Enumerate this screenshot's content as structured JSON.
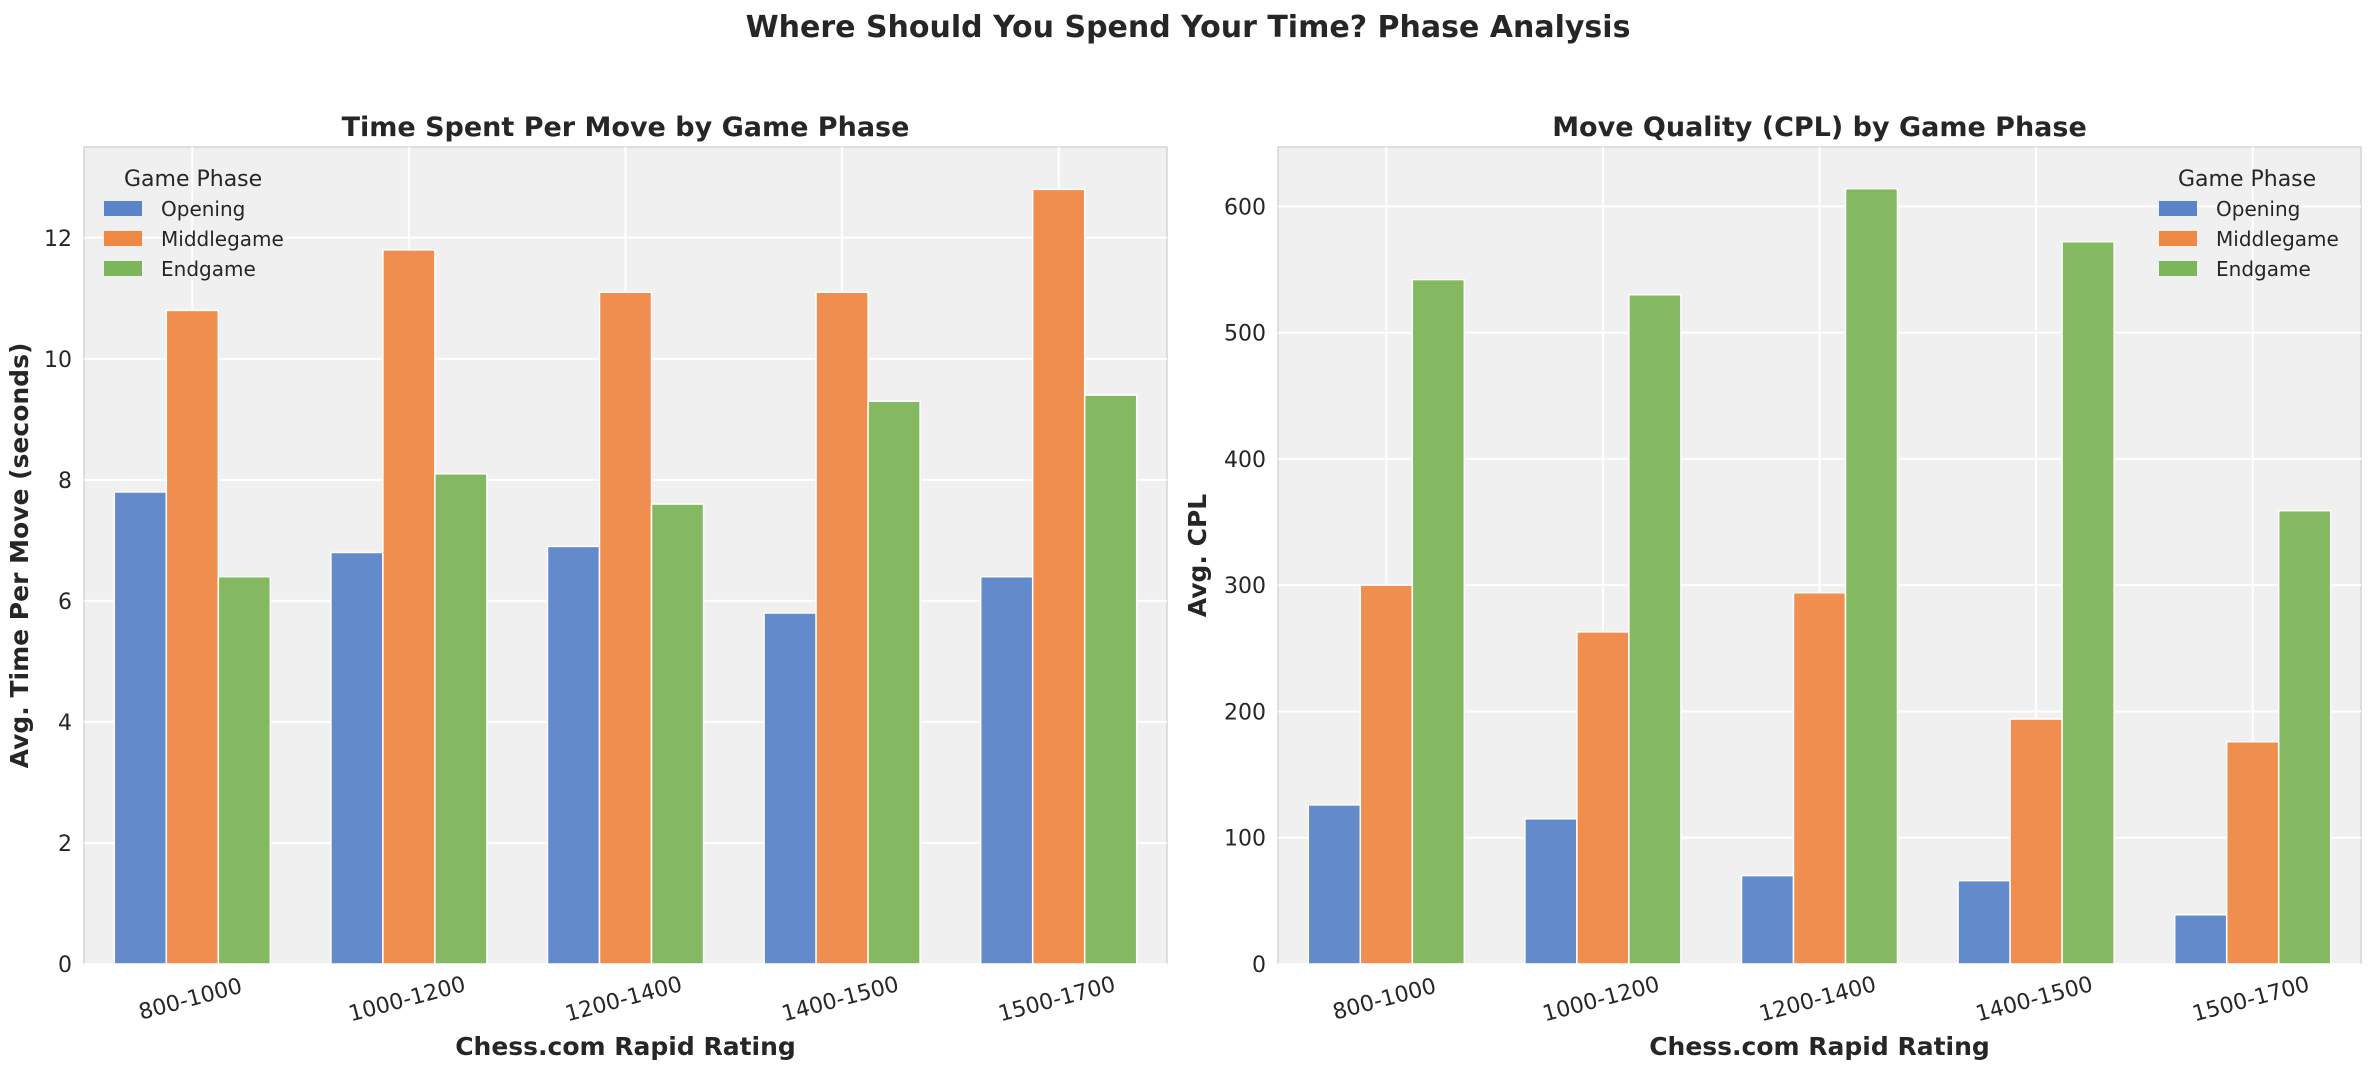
{
  "figure": {
    "suptitle": "Where Should You Spend Your Time? Phase Analysis"
  },
  "colors": {
    "Opening": "#5b84c8",
    "Middlegame": "#ee8844",
    "Endgame": "#7db55a",
    "axes_bg": "#f0f0f0",
    "grid": "#ffffff",
    "text": "#262626"
  },
  "chart_data": [
    {
      "type": "bar",
      "title": "Time Spent Per Move by Game Phase",
      "xlabel": "Chess.com Rapid Rating",
      "ylabel": "Avg. Time Per Move (seconds)",
      "categories": [
        "800-1000",
        "1000-1200",
        "1200-1400",
        "1400-1500",
        "1500-1700"
      ],
      "ylim": [
        0,
        13.5
      ],
      "yticks": [
        0,
        2,
        4,
        6,
        8,
        10,
        12
      ],
      "grid": true,
      "legend": {
        "title": "Game Phase",
        "placement": "top-left"
      },
      "series": [
        {
          "name": "Opening",
          "values": [
            7.8,
            6.8,
            6.9,
            5.8,
            6.4
          ]
        },
        {
          "name": "Middlegame",
          "values": [
            10.8,
            11.8,
            11.1,
            11.1,
            12.8
          ]
        },
        {
          "name": "Endgame",
          "values": [
            6.4,
            8.1,
            7.6,
            9.3,
            9.4
          ]
        }
      ]
    },
    {
      "type": "bar",
      "title": "Move Quality (CPL) by Game Phase",
      "xlabel": "Chess.com Rapid Rating",
      "ylabel": "Avg. CPL",
      "categories": [
        "800-1000",
        "1000-1200",
        "1200-1400",
        "1400-1500",
        "1500-1700"
      ],
      "ylim": [
        0,
        647
      ],
      "yticks": [
        0,
        100,
        200,
        300,
        400,
        500,
        600
      ],
      "grid": true,
      "legend": {
        "title": "Game Phase",
        "placement": "top-right"
      },
      "series": [
        {
          "name": "Opening",
          "values": [
            126,
            115,
            70,
            66,
            39
          ]
        },
        {
          "name": "Middlegame",
          "values": [
            300,
            263,
            294,
            194,
            176
          ]
        },
        {
          "name": "Endgame",
          "values": [
            542,
            530,
            614,
            572,
            359
          ]
        }
      ]
    }
  ]
}
